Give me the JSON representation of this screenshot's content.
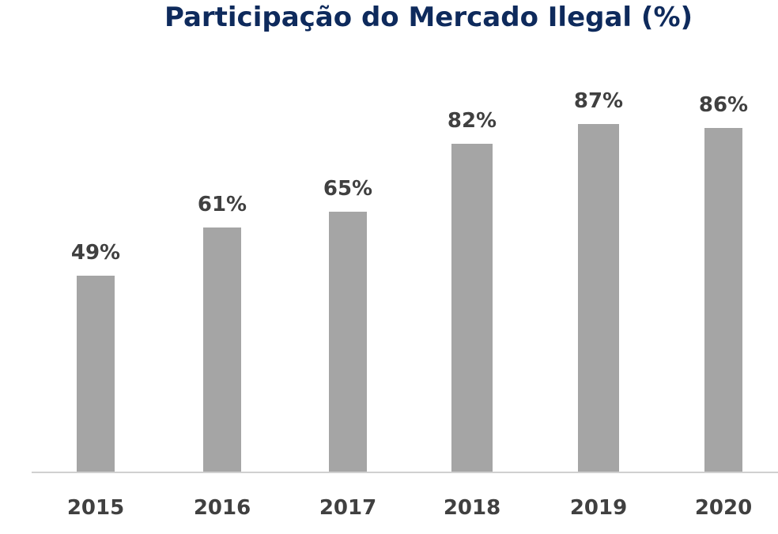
{
  "chart_data": {
    "type": "bar",
    "title": "Participação do Mercado Ilegal (%)",
    "categories": [
      "2015",
      "2016",
      "2017",
      "2018",
      "2019",
      "2020"
    ],
    "values": [
      49,
      61,
      65,
      82,
      87,
      86
    ],
    "data_labels": [
      "49%",
      "61%",
      "65%",
      "82%",
      "87%",
      "86%"
    ],
    "xlabel": "",
    "ylabel": "",
    "ylim": [
      0,
      100
    ],
    "grid": false,
    "legend": null,
    "colors": {
      "bar": "#a5a5a5",
      "title": "#0e2a5c",
      "labels": "#404040",
      "axis": "#d0d0d0"
    }
  }
}
